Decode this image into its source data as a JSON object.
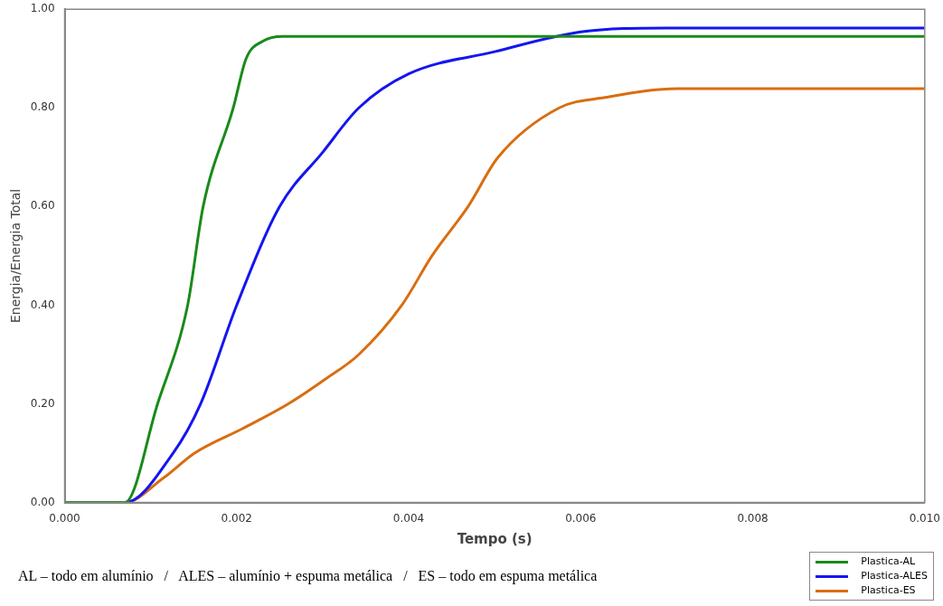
{
  "chart_data": {
    "type": "line",
    "xlabel": "Tempo (s)",
    "ylabel": "Energia/Energia Total",
    "xlim": [
      0,
      0.01
    ],
    "xticks": [
      {
        "value": 0,
        "label": "0.000"
      },
      {
        "value": 0.002,
        "label": "0.002"
      },
      {
        "value": 0.004,
        "label": "0.004"
      },
      {
        "value": 0.006,
        "label": "0.006"
      },
      {
        "value": 0.008,
        "label": "0.008"
      },
      {
        "value": 0.01,
        "label": "0.010"
      }
    ],
    "ylim": [
      0,
      1
    ],
    "yticks": [
      {
        "value": 0,
        "label": "0.00"
      },
      {
        "value": 0.2,
        "label": "0.20"
      },
      {
        "value": 0.4,
        "label": "0.40"
      },
      {
        "value": 0.6,
        "label": "0.60"
      },
      {
        "value": 0.8,
        "label": "0.80"
      },
      {
        "value": 1,
        "label": "1.00"
      }
    ],
    "grid": false,
    "legend": "bottom right",
    "marker": "none",
    "line_style": "solid",
    "annotations": [
      "AL – todo em alumínio   /   ALES – alumínio + espuma metálica   /   ES – todo em espuma metálica"
    ],
    "series": [
      {
        "name": "Plastica-AL",
        "color": "#1a8a1a",
        "x": [
          0,
          0.0007,
          0.00108,
          0.00143,
          0.00161,
          0.00196,
          0.00211,
          0.0023,
          0.00254,
          0.01
        ],
        "values": [
          0,
          0,
          0.2,
          0.4,
          0.6,
          0.8,
          0.9,
          0.935,
          0.945,
          0.945
        ]
      },
      {
        "name": "Plastica-ALES",
        "color": "#1515f0",
        "x": [
          0,
          0.0007,
          0.00126,
          0.00158,
          0.002,
          0.0025,
          0.003,
          0.00342,
          0.004,
          0.005,
          0.006,
          0.007,
          0.01
        ],
        "values": [
          0,
          0,
          0.1,
          0.2,
          0.4,
          0.6,
          0.71,
          0.8,
          0.869,
          0.914,
          0.954,
          0.962,
          0.962
        ]
      },
      {
        "name": "Plastica-ES",
        "color": "#d96d10",
        "x": [
          0,
          0.0007,
          0.00115,
          0.00151,
          0.00207,
          0.0026,
          0.00303,
          0.00342,
          0.00392,
          0.00427,
          0.00469,
          0.00504,
          0.00575,
          0.00628,
          0.00713,
          0.01
        ],
        "values": [
          0,
          0,
          0.05,
          0.1,
          0.15,
          0.2,
          0.25,
          0.3,
          0.4,
          0.5,
          0.6,
          0.7,
          0.8,
          0.821,
          0.839,
          0.839
        ]
      }
    ]
  }
}
